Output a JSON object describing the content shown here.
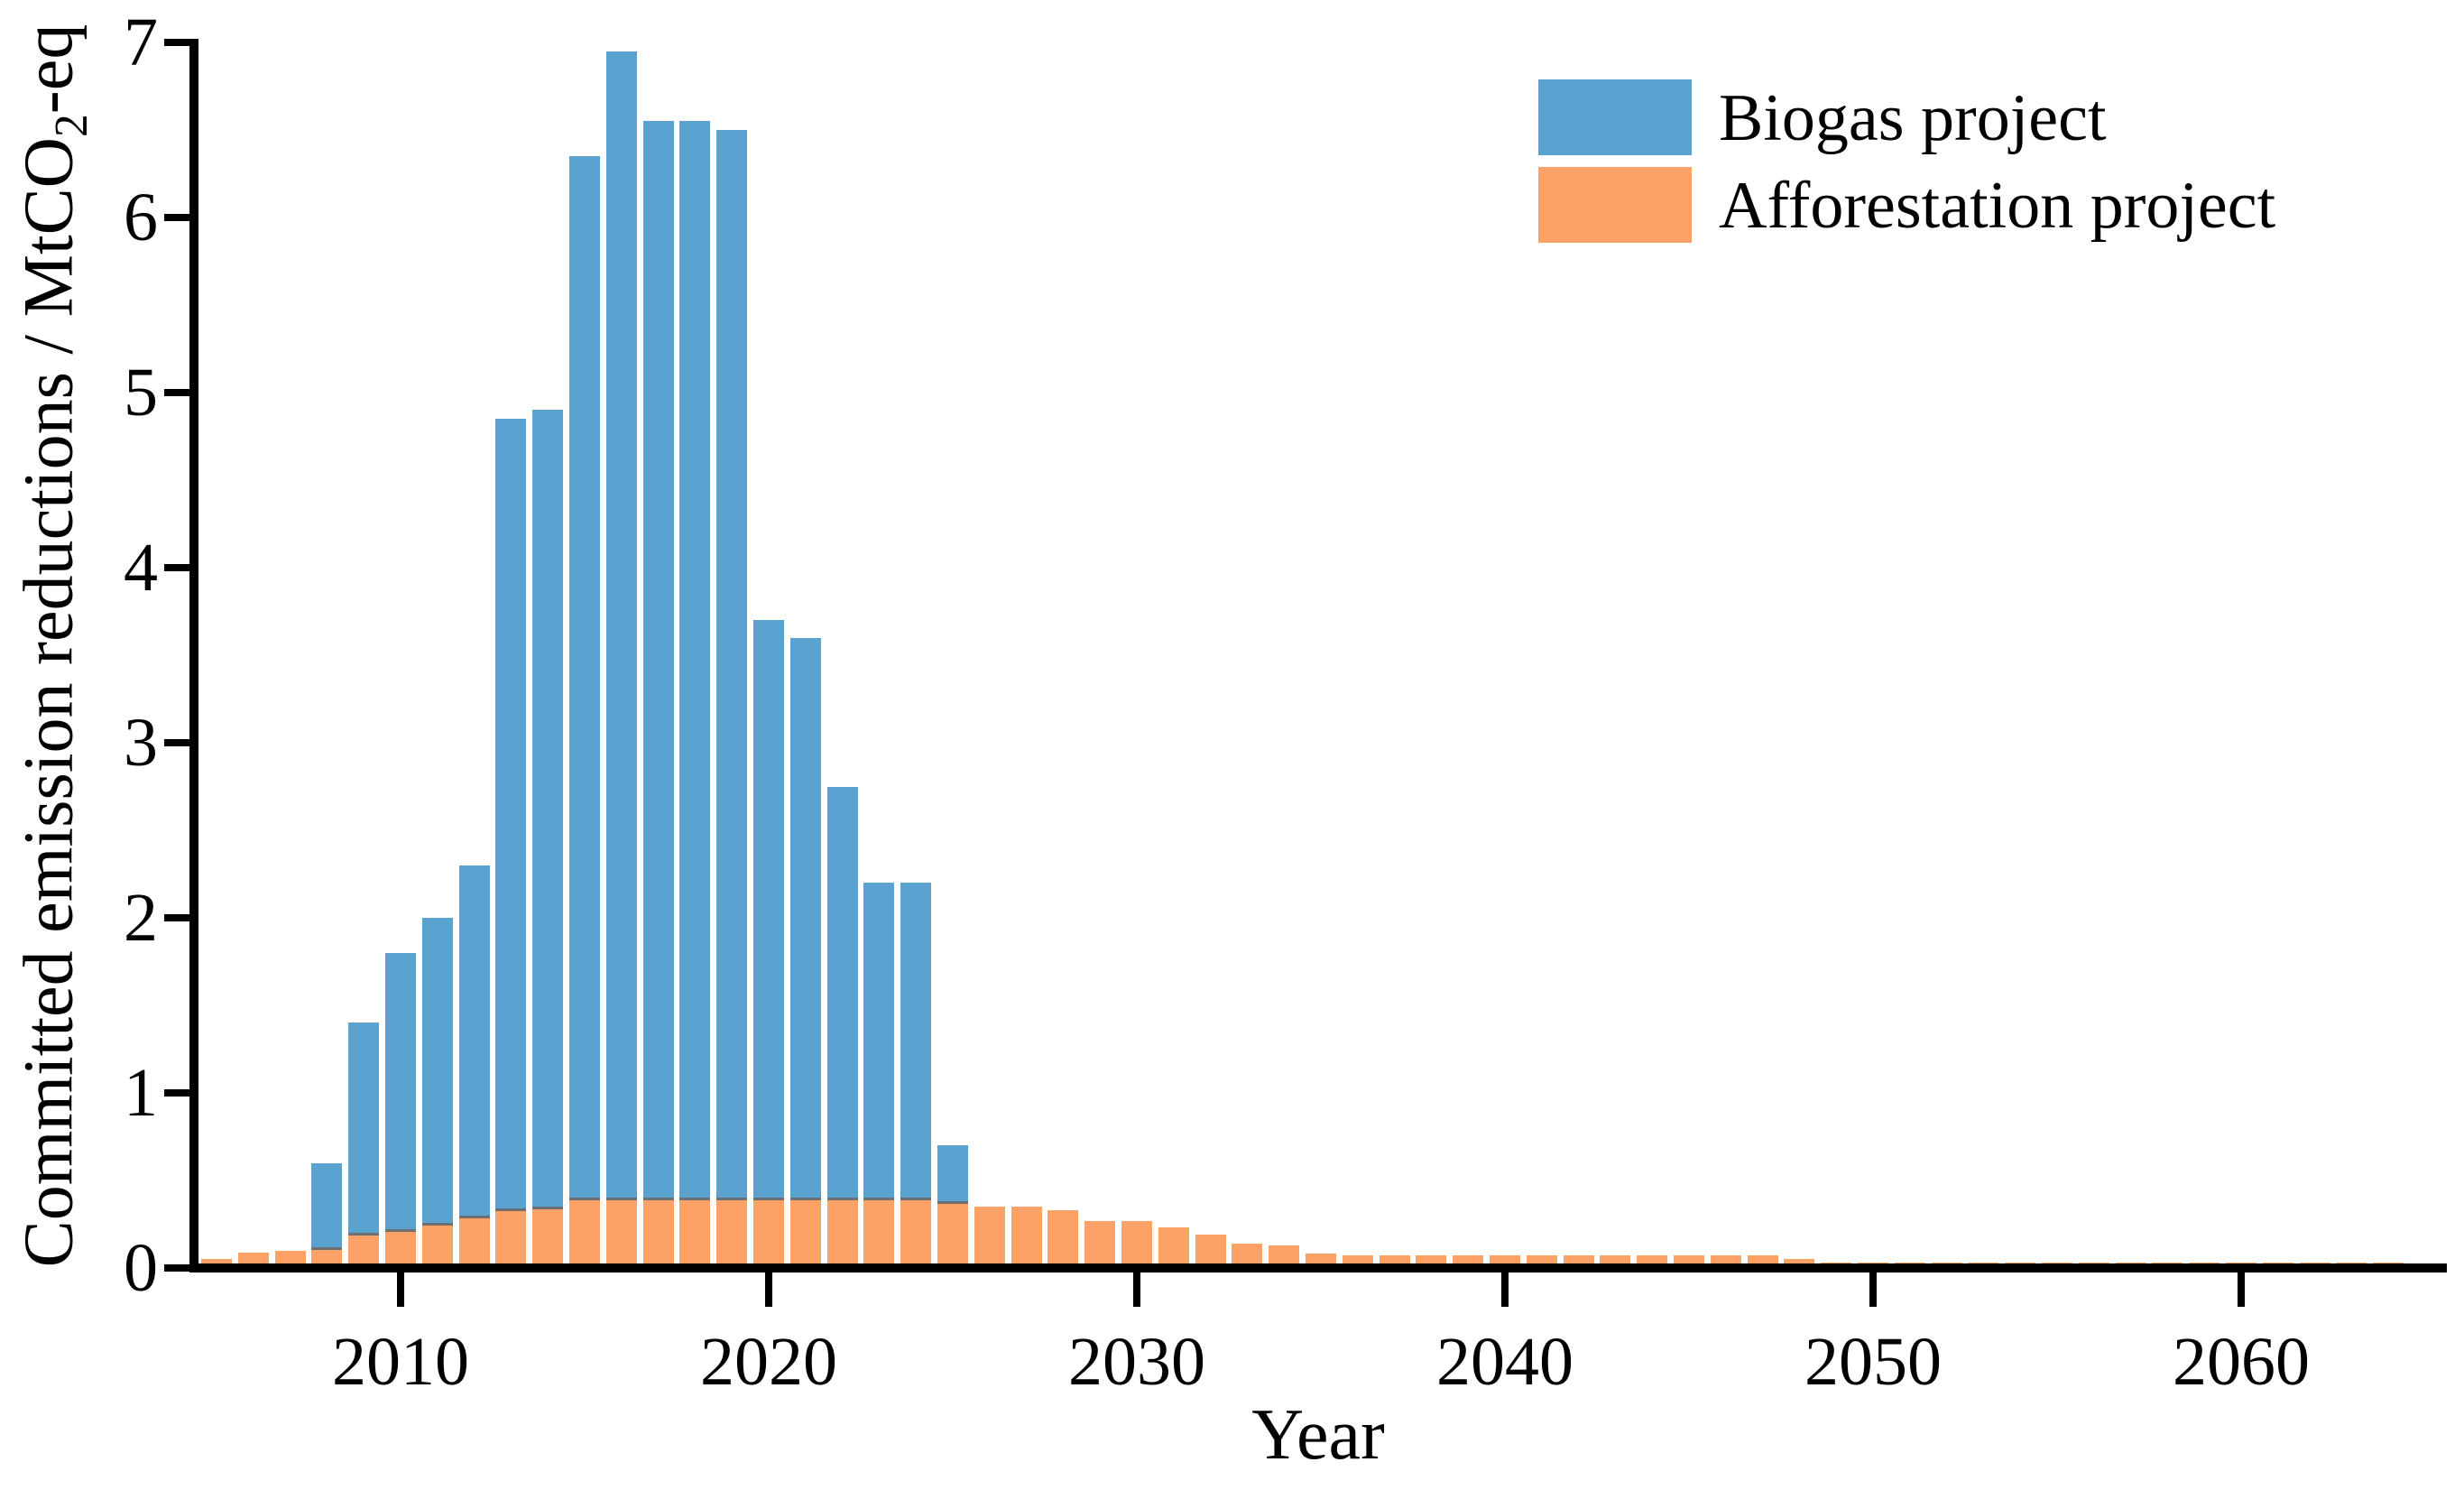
{
  "figure": {
    "background": "#FFFFFF"
  },
  "axes": {
    "x_label": "Year",
    "y_label_prefix": "Committed emission reductions / MtCO",
    "y_label_sub": "2",
    "y_label_suffix": "-eq"
  },
  "legend": {
    "items": [
      {
        "label": "Biogas project",
        "color": "#5AA2CF"
      },
      {
        "label": "Afforestation project",
        "color": "#FCA266"
      }
    ]
  },
  "chart_data": {
    "type": "bar",
    "title": "",
    "xlabel": "Year",
    "ylabel": "Committed emission reductions / MtCO2-eq",
    "ylim": [
      0,
      7
    ],
    "yticks": [
      0,
      1,
      2,
      3,
      4,
      5,
      6,
      7
    ],
    "xticks": [
      2010,
      2020,
      2030,
      2040,
      2050,
      2060
    ],
    "xlim": [
      2004.4,
      2065.6
    ],
    "grid": false,
    "legend_position": "upper right",
    "bar_style": "both series drawn from zero on shared axis; afforestation bars drawn in front of biogas bars",
    "categories": [
      2005,
      2006,
      2007,
      2008,
      2009,
      2010,
      2011,
      2012,
      2013,
      2014,
      2015,
      2016,
      2017,
      2018,
      2019,
      2020,
      2021,
      2022,
      2023,
      2024,
      2025,
      2026,
      2027,
      2028,
      2029,
      2030,
      2031,
      2032,
      2033,
      2034,
      2035,
      2036,
      2037,
      2038,
      2039,
      2040,
      2041,
      2042,
      2043,
      2044,
      2045,
      2046,
      2047,
      2048,
      2049,
      2050,
      2051,
      2052,
      2053,
      2054,
      2055,
      2056,
      2057,
      2058,
      2059,
      2060,
      2061,
      2062,
      2063,
      2064
    ],
    "series": [
      {
        "name": "Biogas project",
        "color": "#5AA2CF",
        "values": [
          0,
          0,
          0,
          0.6,
          1.4,
          1.8,
          2.0,
          2.3,
          4.85,
          4.9,
          6.35,
          6.95,
          6.55,
          6.55,
          6.5,
          3.7,
          3.6,
          2.75,
          2.2,
          2.2,
          0.7,
          0,
          0,
          0,
          0,
          0,
          0,
          0,
          0,
          0,
          0,
          0,
          0,
          0,
          0,
          0,
          0,
          0,
          0,
          0,
          0,
          0,
          0,
          0,
          0,
          0,
          0,
          0,
          0,
          0,
          0,
          0,
          0,
          0,
          0,
          0,
          0,
          0,
          0,
          0
        ]
      },
      {
        "name": "Afforestation project",
        "color": "#FCA266",
        "values": [
          0.05,
          0.09,
          0.1,
          0.12,
          0.2,
          0.22,
          0.26,
          0.3,
          0.34,
          0.35,
          0.4,
          0.4,
          0.4,
          0.4,
          0.4,
          0.4,
          0.4,
          0.4,
          0.4,
          0.4,
          0.38,
          0.35,
          0.35,
          0.33,
          0.27,
          0.27,
          0.23,
          0.19,
          0.14,
          0.13,
          0.08,
          0.07,
          0.07,
          0.07,
          0.07,
          0.07,
          0.07,
          0.07,
          0.07,
          0.07,
          0.07,
          0.07,
          0.07,
          0.05,
          0.03,
          0.03,
          0.03,
          0.03,
          0.03,
          0.03,
          0.03,
          0.03,
          0.03,
          0.03,
          0.03,
          0.03,
          0.03,
          0.03,
          0.03,
          0.03
        ]
      }
    ]
  }
}
